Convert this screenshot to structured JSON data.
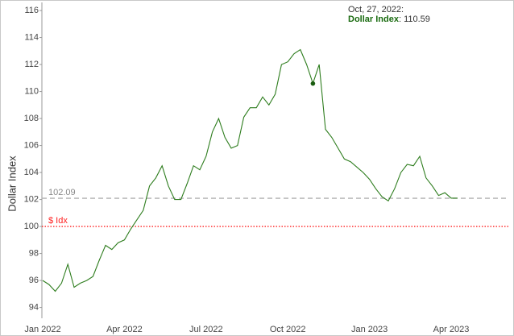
{
  "chart_data": {
    "type": "line",
    "y_label": "Dollar Index",
    "categories": [
      "Jan 2022",
      null,
      null,
      null,
      null,
      null,
      null,
      null,
      null,
      null,
      null,
      null,
      null,
      "Apr 2022",
      null,
      null,
      null,
      null,
      null,
      null,
      null,
      null,
      null,
      null,
      null,
      null,
      "Jul 2022",
      null,
      null,
      null,
      null,
      null,
      null,
      null,
      null,
      null,
      null,
      null,
      null,
      "Oct 2022",
      null,
      null,
      null,
      null,
      null,
      null,
      null,
      null,
      null,
      null,
      null,
      null,
      "Jan 2023",
      null,
      null,
      null,
      null,
      null,
      null,
      null,
      null,
      null,
      null,
      null,
      null,
      "Apr 2023",
      null
    ],
    "series": [
      {
        "name": "Dollar Index",
        "color": "#2e7d1e",
        "values": [
          96.0,
          95.7,
          95.2,
          95.8,
          97.2,
          95.5,
          95.8,
          96.0,
          96.3,
          97.5,
          98.6,
          98.3,
          98.8,
          99.0,
          99.8,
          100.5,
          101.2,
          103.0,
          103.6,
          104.5,
          103.0,
          102.0,
          102.0,
          103.2,
          104.5,
          104.2,
          105.2,
          107.0,
          108.0,
          106.6,
          105.8,
          106.0,
          108.1,
          108.8,
          108.8,
          109.6,
          109.0,
          109.8,
          112.0,
          112.2,
          112.8,
          113.1,
          112.0,
          110.6,
          112.0,
          107.2,
          106.6,
          105.8,
          105.0,
          104.8,
          104.4,
          104.0,
          103.5,
          102.8,
          102.2,
          101.9,
          102.8,
          104.0,
          104.6,
          104.5,
          105.2,
          103.6,
          103.0,
          102.3,
          102.5,
          102.1,
          102.1
        ]
      }
    ],
    "ylim": [
      93.2,
      116.6
    ],
    "yticks": [
      94,
      96,
      98,
      100,
      102,
      104,
      106,
      108,
      110,
      112,
      114,
      116
    ],
    "reference_lines": [
      {
        "value": 102.09,
        "color": "#b0b0b0",
        "style": "dashed"
      },
      {
        "value": 100,
        "label": "$ Idx",
        "color": "#ff2020",
        "style": "dotted"
      }
    ],
    "tooltip": {
      "date": "Oct, 27, 2022:",
      "name": "Dollar Index",
      "value": 110.59,
      "value_label": ": 110.59",
      "index": 43
    }
  }
}
